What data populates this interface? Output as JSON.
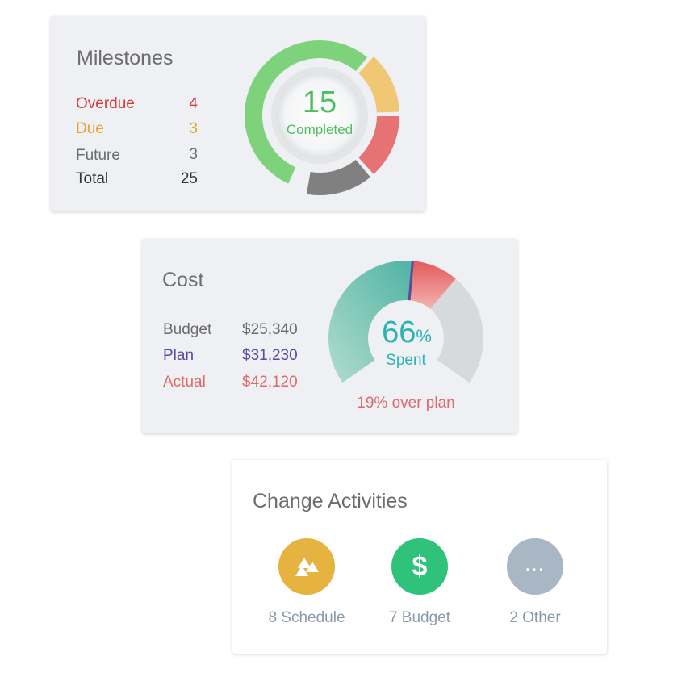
{
  "milestones": {
    "title": "Milestones",
    "rows": [
      {
        "label": "Overdue",
        "value": "4",
        "color": "#d83a3a"
      },
      {
        "label": "Due",
        "value": "3",
        "color": "#e8a22e"
      },
      {
        "label": "Future",
        "value": "3",
        "color": "#6b6b6b"
      },
      {
        "label": "Total",
        "value": "25",
        "color": "#333333"
      }
    ],
    "donut": {
      "center_value": "15",
      "center_label": "Completed",
      "center_color": "#4cbf5e",
      "segments": [
        {
          "name": "Completed",
          "value": 15,
          "color": "#7fd27c"
        },
        {
          "name": "Due",
          "value": 3,
          "color": "#f0c775"
        },
        {
          "name": "Overdue",
          "value": 4,
          "color": "#e57373"
        },
        {
          "name": "Future",
          "value": 3,
          "color": "#808080"
        }
      ]
    }
  },
  "cost": {
    "title": "Cost",
    "rows": [
      {
        "label": "Budget",
        "value": "$25,340",
        "color": "#6b6b6b"
      },
      {
        "label": "Plan",
        "value": "$31,230",
        "color": "#5b4aa0"
      },
      {
        "label": "Actual",
        "value": "$42,120",
        "color": "#e06868"
      }
    ],
    "gauge": {
      "value_num": "66",
      "value_unit": "%",
      "value_label": "Spent",
      "spent_fraction": 0.66,
      "plan_marker_fraction": 0.52,
      "footer": "19% over plan",
      "footer_color": "#e06868",
      "teal": "#4fb3a4",
      "red": "#e86b6b",
      "plan_color": "#5b4aa0",
      "remaining_color": "#d7dadd"
    }
  },
  "change_activities": {
    "title": "Change Activities",
    "items": [
      {
        "label": "8 Schedule",
        "icon": "triangles-icon",
        "color": "#e6b340"
      },
      {
        "label": "7 Budget",
        "icon": "dollar-icon",
        "symbol": "$",
        "color": "#2fc27a"
      },
      {
        "label": "2 Other",
        "icon": "more-icon",
        "symbol": "…",
        "color": "#a9b6c3"
      }
    ]
  }
}
